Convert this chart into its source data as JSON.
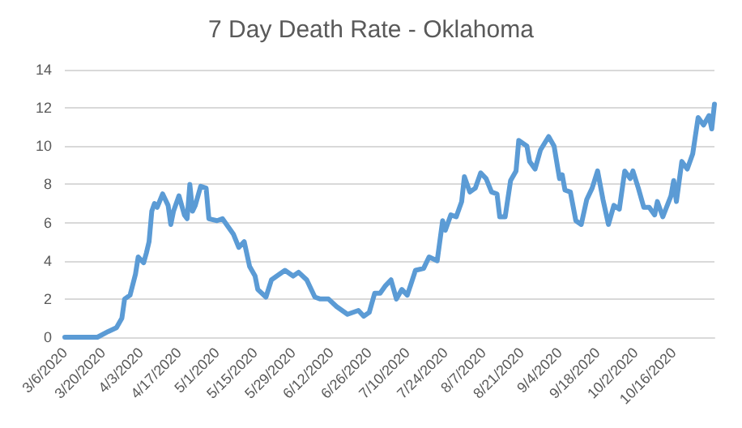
{
  "chart_data": {
    "type": "line",
    "title": "7 Day Death Rate - Oklahoma",
    "x": [
      "2020-03-06",
      "2020-03-18",
      "2020-03-22",
      "2020-03-25",
      "2020-03-27",
      "2020-03-28",
      "2020-03-30",
      "2020-04-01",
      "2020-04-02",
      "2020-04-04",
      "2020-04-05",
      "2020-04-06",
      "2020-04-07",
      "2020-04-08",
      "2020-04-09",
      "2020-04-11",
      "2020-04-13",
      "2020-04-14",
      "2020-04-15",
      "2020-04-17",
      "2020-04-19",
      "2020-04-20",
      "2020-04-21",
      "2020-04-22",
      "2020-04-23",
      "2020-04-25",
      "2020-04-27",
      "2020-04-28",
      "2020-05-01",
      "2020-05-03",
      "2020-05-05",
      "2020-05-07",
      "2020-05-09",
      "2020-05-11",
      "2020-05-13",
      "2020-05-15",
      "2020-05-16",
      "2020-05-19",
      "2020-05-21",
      "2020-05-23",
      "2020-05-26",
      "2020-05-29",
      "2020-05-31",
      "2020-06-03",
      "2020-06-06",
      "2020-06-08",
      "2020-06-11",
      "2020-06-14",
      "2020-06-18",
      "2020-06-22",
      "2020-06-24",
      "2020-06-26",
      "2020-06-28",
      "2020-06-30",
      "2020-07-02",
      "2020-07-04",
      "2020-07-06",
      "2020-07-08",
      "2020-07-10",
      "2020-07-13",
      "2020-07-16",
      "2020-07-18",
      "2020-07-21",
      "2020-07-23",
      "2020-07-24",
      "2020-07-26",
      "2020-07-28",
      "2020-07-30",
      "2020-07-31",
      "2020-08-02",
      "2020-08-04",
      "2020-08-06",
      "2020-08-08",
      "2020-08-10",
      "2020-08-12",
      "2020-08-13",
      "2020-08-15",
      "2020-08-17",
      "2020-08-19",
      "2020-08-20",
      "2020-08-23",
      "2020-08-24",
      "2020-08-26",
      "2020-08-28",
      "2020-08-31",
      "2020-09-02",
      "2020-09-04",
      "2020-09-05",
      "2020-09-06",
      "2020-09-08",
      "2020-09-10",
      "2020-09-12",
      "2020-09-14",
      "2020-09-16",
      "2020-09-18",
      "2020-09-20",
      "2020-09-22",
      "2020-09-24",
      "2020-09-26",
      "2020-09-28",
      "2020-09-30",
      "2020-10-01",
      "2020-10-03",
      "2020-10-05",
      "2020-10-07",
      "2020-10-09",
      "2020-10-10",
      "2020-10-12",
      "2020-10-15",
      "2020-10-16",
      "2020-10-17",
      "2020-10-19",
      "2020-10-21",
      "2020-10-23",
      "2020-10-25",
      "2020-10-27",
      "2020-10-29",
      "2020-10-30",
      "2020-10-31"
    ],
    "series": [
      {
        "color": "#5b9bd5",
        "values": [
          0,
          0,
          0.3,
          0.5,
          1.0,
          2.0,
          2.2,
          3.3,
          4.2,
          3.9,
          4.4,
          5.0,
          6.6,
          7.0,
          6.8,
          7.5,
          6.9,
          5.9,
          6.6,
          7.4,
          6.4,
          6.2,
          8.0,
          6.6,
          6.9,
          7.9,
          7.8,
          6.2,
          6.1,
          6.2,
          5.8,
          5.4,
          4.7,
          5.0,
          3.7,
          3.2,
          2.5,
          2.1,
          3.0,
          3.2,
          3.5,
          3.2,
          3.4,
          3.0,
          2.1,
          2.0,
          2.0,
          1.6,
          1.2,
          1.4,
          1.1,
          1.3,
          2.3,
          2.3,
          2.7,
          3.0,
          2.0,
          2.5,
          2.2,
          3.5,
          3.6,
          4.2,
          4.0,
          6.1,
          5.6,
          6.4,
          6.3,
          7.1,
          8.4,
          7.6,
          7.8,
          8.6,
          8.3,
          7.6,
          7.5,
          6.3,
          6.3,
          8.2,
          8.7,
          10.3,
          10.0,
          9.2,
          8.8,
          9.8,
          10.5,
          10.0,
          8.3,
          8.5,
          7.7,
          7.6,
          6.1,
          5.9,
          7.2,
          7.8,
          8.7,
          7.2,
          5.9,
          6.9,
          6.7,
          8.7,
          8.3,
          8.7,
          7.8,
          6.8,
          6.8,
          6.4,
          7.1,
          6.3,
          7.4,
          8.2,
          7.1,
          9.2,
          8.8,
          9.6,
          11.5,
          11.1,
          11.6,
          10.9,
          12.2
        ]
      }
    ],
    "xlim": [
      "2020-03-06",
      "2020-10-31"
    ],
    "xticks": [
      {
        "value": "2020-03-06",
        "label": "3/6/2020"
      },
      {
        "value": "2020-03-20",
        "label": "3/20/2020"
      },
      {
        "value": "2020-04-03",
        "label": "4/3/2020"
      },
      {
        "value": "2020-04-17",
        "label": "4/17/2020"
      },
      {
        "value": "2020-05-01",
        "label": "5/1/2020"
      },
      {
        "value": "2020-05-15",
        "label": "5/15/2020"
      },
      {
        "value": "2020-05-29",
        "label": "5/29/2020"
      },
      {
        "value": "2020-06-12",
        "label": "6/12/2020"
      },
      {
        "value": "2020-06-26",
        "label": "6/26/2020"
      },
      {
        "value": "2020-07-10",
        "label": "7/10/2020"
      },
      {
        "value": "2020-07-24",
        "label": "7/24/2020"
      },
      {
        "value": "2020-08-07",
        "label": "8/7/2020"
      },
      {
        "value": "2020-08-21",
        "label": "8/21/2020"
      },
      {
        "value": "2020-09-04",
        "label": "9/4/2020"
      },
      {
        "value": "2020-09-18",
        "label": "9/18/2020"
      },
      {
        "value": "2020-10-02",
        "label": "10/2/2020"
      },
      {
        "value": "2020-10-16",
        "label": "10/16/2020"
      }
    ],
    "ylim": [
      0,
      14
    ],
    "yticks": [
      0,
      2,
      4,
      6,
      8,
      10,
      12,
      14
    ],
    "grid": "y",
    "marker": "none",
    "line_style": "solid"
  }
}
